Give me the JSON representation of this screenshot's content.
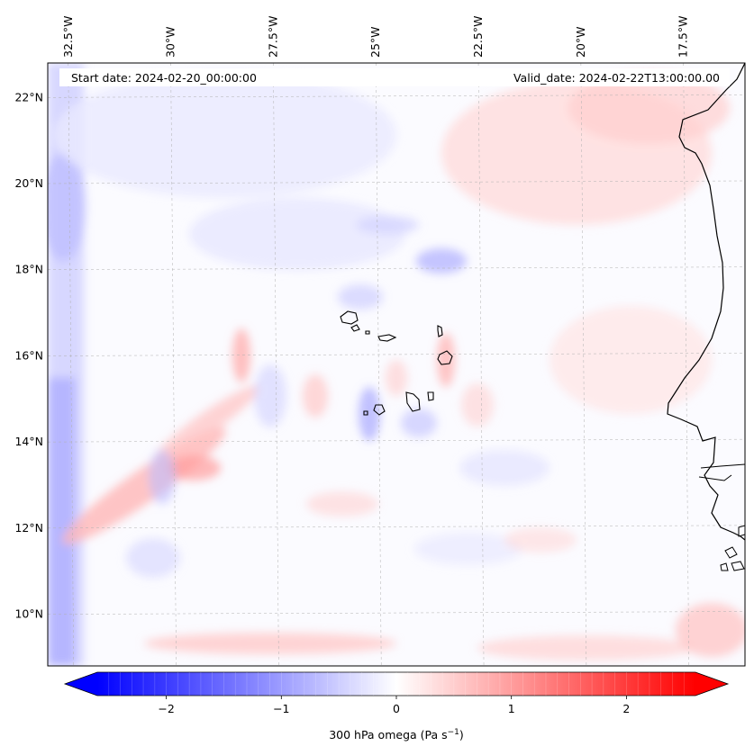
{
  "header": {
    "start_date": "Start date: 2024-02-20_00:00:00",
    "valid_date": "Valid_date: 2024-02-22T13:00:00.00"
  },
  "map": {
    "extent": {
      "lon_min": -33.0,
      "lon_max": -16.0,
      "lat_min": 8.8,
      "lat_max": 22.8
    },
    "lon_ticks": [
      {
        "value": -32.5,
        "label": "32.5°W"
      },
      {
        "value": -30.0,
        "label": "30°W"
      },
      {
        "value": -27.5,
        "label": "27.5°W"
      },
      {
        "value": -25.0,
        "label": "25°W"
      },
      {
        "value": -22.5,
        "label": "22.5°W"
      },
      {
        "value": -20.0,
        "label": "20°W"
      },
      {
        "value": -17.5,
        "label": "17.5°W"
      }
    ],
    "lat_ticks": [
      {
        "value": 22,
        "label": "22°N"
      },
      {
        "value": 20,
        "label": "20°N"
      },
      {
        "value": 18,
        "label": "18°N"
      },
      {
        "value": 16,
        "label": "16°N"
      },
      {
        "value": 14,
        "label": "14°N"
      },
      {
        "value": 12,
        "label": "12°N"
      },
      {
        "value": 10,
        "label": "10°N"
      }
    ],
    "gridlines": true,
    "coastline_color": "#000000"
  },
  "colorbar": {
    "vmin": -2.6,
    "vmax": 2.6,
    "colormap": "bwr",
    "ticks": [
      {
        "value": -2,
        "label": "−2"
      },
      {
        "value": -1,
        "label": "−1"
      },
      {
        "value": 0,
        "label": "0"
      },
      {
        "value": 1,
        "label": "1"
      },
      {
        "value": 2,
        "label": "2"
      }
    ],
    "label": "300 hPa omega (Pa s",
    "label_sup": "−1",
    "label_end": ")",
    "extend": "both",
    "min_color": "#0000ff",
    "mid_color": "#ffffff",
    "max_color": "#ff0000"
  }
}
